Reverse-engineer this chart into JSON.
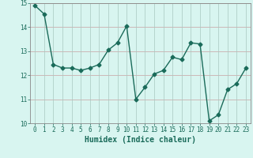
{
  "x": [
    0,
    1,
    2,
    3,
    4,
    5,
    6,
    7,
    8,
    9,
    10,
    11,
    12,
    13,
    14,
    15,
    16,
    17,
    18,
    19,
    20,
    21,
    22,
    23
  ],
  "y": [
    14.9,
    14.55,
    12.45,
    12.3,
    12.3,
    12.2,
    12.3,
    12.45,
    13.05,
    13.35,
    14.05,
    11.0,
    11.5,
    12.05,
    12.2,
    12.75,
    12.65,
    13.35,
    13.3,
    10.1,
    10.35,
    11.4,
    11.65,
    12.3
  ],
  "line_color": "#1a6b5a",
  "marker": "D",
  "markersize": 2.5,
  "linewidth": 1.0,
  "xlabel": "Humidex (Indice chaleur)",
  "ylabel": "",
  "title": "",
  "xlim": [
    -0.5,
    23.5
  ],
  "ylim": [
    10,
    15
  ],
  "yticks": [
    10,
    11,
    12,
    13,
    14,
    15
  ],
  "xticks": [
    0,
    1,
    2,
    3,
    4,
    5,
    6,
    7,
    8,
    9,
    10,
    11,
    12,
    13,
    14,
    15,
    16,
    17,
    18,
    19,
    20,
    21,
    22,
    23
  ],
  "bg_color": "#d8f5f0",
  "grid_color_major": "#c8a0a0",
  "grid_color_vert": "#a8c8c0",
  "xlabel_color": "#1a6b5a",
  "tick_color": "#1a6b5a",
  "font_size_xlabel": 7,
  "font_size_ticks": 5.5
}
